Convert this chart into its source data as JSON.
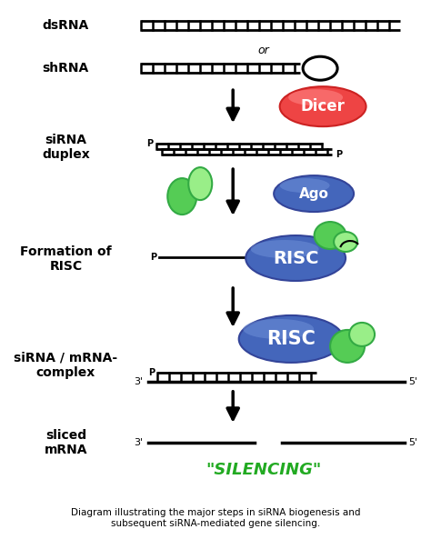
{
  "background_color": "#ffffff",
  "label_color": "#000000",
  "green_dark": "#33aa44",
  "green_mid": "#55cc55",
  "green_light": "#99ee88",
  "blue_dark": "#334499",
  "blue_mid": "#4466bb",
  "blue_light": "#7799dd",
  "red_dark": "#cc2222",
  "red_mid": "#ee4444",
  "red_light": "#ff8888",
  "silencing_color": "#22aa22",
  "caption": "Diagram illustrating the major steps in siRNA biogenesis and\nsubsequent siRNA-mediated gene silencing.",
  "labels": {
    "dsRNA": "dsRNA",
    "shRNA": "shRNA",
    "siRNA_duplex": "siRNA\nduplex",
    "formation": "Formation of\nRISC",
    "complex": "siRNA / mRNA-\ncomplex",
    "sliced": "sliced\nmRNA"
  },
  "fig_w": 4.74,
  "fig_h": 6.04,
  "dpi": 100
}
